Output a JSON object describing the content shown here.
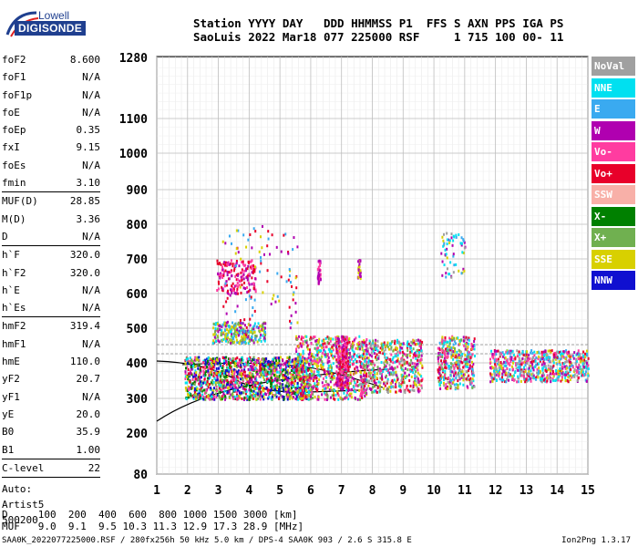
{
  "logo": {
    "top": "Lowell",
    "bottom": "DIGISONDE"
  },
  "header": {
    "line1": "Station YYYY DAY   DDD HHMMSS P1  FFS S AXN PPS IGA PS",
    "line2": "SaoLuis 2022 Mar18 077 225000 RSF     1 715 100 00- 11"
  },
  "params_group1": [
    {
      "name": "foF2",
      "value": "8.600"
    },
    {
      "name": "foF1",
      "value": "N/A"
    },
    {
      "name": "foF1p",
      "value": "N/A"
    },
    {
      "name": "foE",
      "value": "N/A"
    },
    {
      "name": "foEp",
      "value": "0.35"
    },
    {
      "name": "fxI",
      "value": "9.15"
    },
    {
      "name": "foEs",
      "value": "N/A"
    },
    {
      "name": "fmin",
      "value": "3.10"
    }
  ],
  "params_group2": [
    {
      "name": "MUF(D)",
      "value": "28.85"
    },
    {
      "name": "M(D)",
      "value": "3.36"
    },
    {
      "name": "D",
      "value": "N/A"
    }
  ],
  "params_group3": [
    {
      "name": "h`F",
      "value": "320.0"
    },
    {
      "name": "h`F2",
      "value": "320.0"
    },
    {
      "name": "h`E",
      "value": "N/A"
    },
    {
      "name": "h`Es",
      "value": "N/A"
    }
  ],
  "params_group4": [
    {
      "name": "hmF2",
      "value": "319.4"
    },
    {
      "name": "hmF1",
      "value": "N/A"
    },
    {
      "name": "hmE",
      "value": "110.0"
    },
    {
      "name": "yF2",
      "value": "20.7"
    },
    {
      "name": "yF1",
      "value": "N/A"
    },
    {
      "name": "yE",
      "value": "20.0"
    },
    {
      "name": "B0",
      "value": "35.9"
    },
    {
      "name": "B1",
      "value": "1.00"
    }
  ],
  "clevel": {
    "name": "C-level",
    "value": "22"
  },
  "auto": [
    "Auto:",
    "Artist5",
    "500200"
  ],
  "legend": [
    {
      "label": "NoVal",
      "color": "#a0a0a0"
    },
    {
      "label": "NNE",
      "color": "#00e0f0"
    },
    {
      "label": "E",
      "color": "#3aaaf0"
    },
    {
      "label": "W",
      "color": "#b000b0"
    },
    {
      "label": "Vo-",
      "color": "#ff3ca0"
    },
    {
      "label": "Vo+",
      "color": "#e8002a"
    },
    {
      "label": "SSW",
      "color": "#f8b0a8"
    },
    {
      "label": "X-",
      "color": "#008000"
    },
    {
      "label": "X+",
      "color": "#70b050"
    },
    {
      "label": "SSE",
      "color": "#d8d000"
    },
    {
      "label": "NNW",
      "color": "#1010d0"
    }
  ],
  "axes": {
    "x_ticks": [
      "1",
      "2",
      "3",
      "4",
      "5",
      "6",
      "7",
      "8",
      "9",
      "10",
      "11",
      "12",
      "13",
      "14",
      "15"
    ],
    "y_ticks": [
      "80",
      "200",
      "300",
      "400",
      "500",
      "600",
      "700",
      "800",
      "900",
      "1000",
      "1100",
      "1280"
    ]
  },
  "footer": {
    "line1": "D     100  200  400  600  800 1000 1500 3000 [km]",
    "line2": "MUF   9.0  9.1  9.5 10.3 11.3 12.9 17.3 28.9 [MHz]",
    "file": "SAA0K_2022077225000.RSF / 280fx256h 50 kHz 5.0 km / DPS-4 SAA0K 903 / 2.6 S 315.8 E",
    "version": "Ion2Png 1.3.17"
  }
}
